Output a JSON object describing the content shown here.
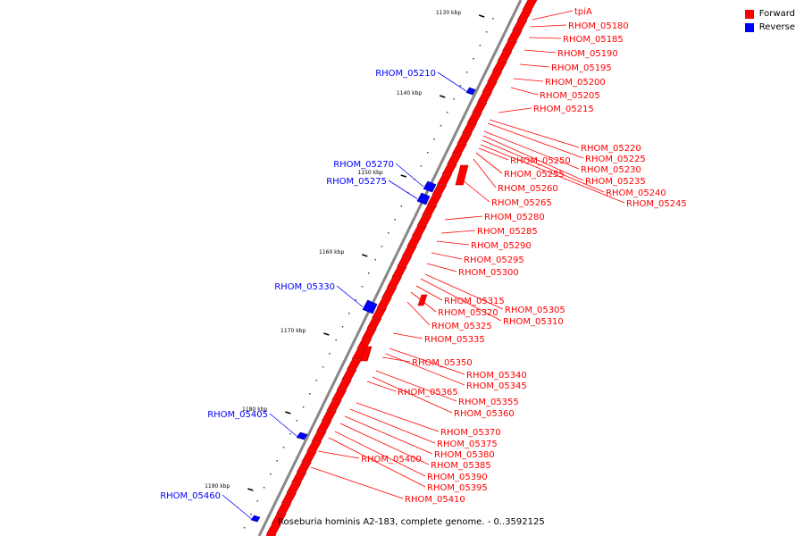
{
  "caption": "Roseburia hominis A2-183, complete genome. - 0..3592125",
  "legend": [
    {
      "label": "Forward",
      "color": "#ff0000"
    },
    {
      "label": "Reverse",
      "color": "#0000ff"
    }
  ],
  "colors": {
    "forward": "#ff0000",
    "reverse": "#0000ff",
    "axis": "#888888"
  },
  "ticks": [
    "1130 kbp",
    "1140 kbp",
    "1150 kbp",
    "1160 kbp",
    "1170 kbp",
    "1180 kbp",
    "1190 kbp"
  ],
  "forward_genes": [
    "tpiA",
    "RHOM_05180",
    "RHOM_05185",
    "RHOM_05190",
    "RHOM_05195",
    "RHOM_05200",
    "RHOM_05205",
    "RHOM_05215",
    "RHOM_05220",
    "RHOM_05225",
    "RHOM_05230",
    "RHOM_05235",
    "RHOM_05240",
    "RHOM_05245",
    "RHOM_05250",
    "RHOM_05255",
    "RHOM_05260",
    "RHOM_05265",
    "RHOM_05280",
    "RHOM_05285",
    "RHOM_05290",
    "RHOM_05295",
    "RHOM_05300",
    "RHOM_05305",
    "RHOM_05310",
    "RHOM_05315",
    "RHOM_05320",
    "RHOM_05325",
    "RHOM_05335",
    "RHOM_05340",
    "RHOM_05345",
    "RHOM_05350",
    "RHOM_05355",
    "RHOM_05360",
    "RHOM_05365",
    "RHOM_05370",
    "RHOM_05375",
    "RHOM_05380",
    "RHOM_05385",
    "RHOM_05390",
    "RHOM_05395",
    "RHOM_05400",
    "RHOM_05410"
  ],
  "reverse_genes": [
    "RHOM_05210",
    "RHOM_05270",
    "RHOM_05275",
    "RHOM_05330",
    "RHOM_05405",
    "RHOM_05460"
  ]
}
